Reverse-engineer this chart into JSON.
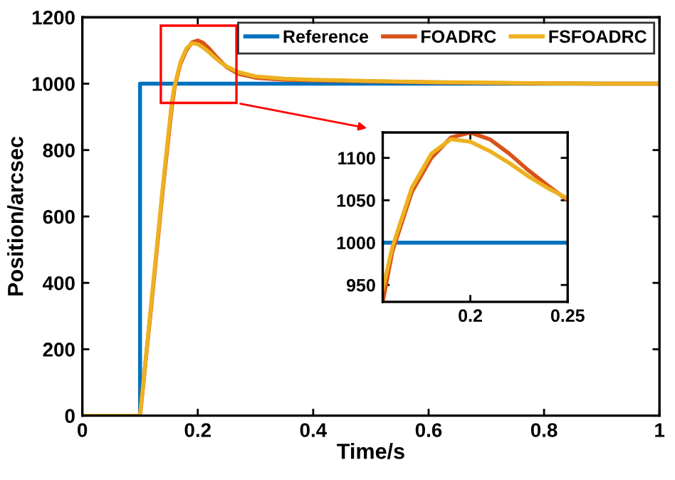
{
  "chart_data": [
    {
      "type": "line",
      "xlabel": "Time/s",
      "ylabel": "Position/arcsec",
      "xlim": [
        0,
        1
      ],
      "ylim": [
        0,
        1200
      ],
      "xticks": [
        0,
        0.2,
        0.4,
        0.6,
        0.8,
        1
      ],
      "yticks": [
        0,
        200,
        400,
        600,
        800,
        1000,
        1200
      ],
      "legend": "top right",
      "grid": false,
      "marker": "none",
      "line_style": "solid",
      "series": [
        {
          "name": "Reference",
          "color": "#0072bd",
          "x": [
            0,
            0.1,
            0.1,
            1
          ],
          "values": [
            0,
            0,
            1000,
            1000
          ]
        },
        {
          "name": "FOADRC",
          "color": "#d95319",
          "x": [
            0,
            0.1,
            0.12,
            0.14,
            0.155,
            0.16,
            0.17,
            0.18,
            0.19,
            0.2,
            0.21,
            0.22,
            0.23,
            0.24,
            0.25,
            0.27,
            0.3,
            0.35,
            0.4,
            0.5,
            0.6,
            0.7,
            0.8,
            0.9,
            1
          ],
          "values": [
            0,
            0,
            340,
            690,
            930,
            990,
            1060,
            1100,
            1124,
            1130,
            1122,
            1105,
            1085,
            1067,
            1050,
            1030,
            1018,
            1012,
            1010,
            1007,
            1004,
            1002,
            1001,
            1000,
            1000
          ]
        },
        {
          "name": "FSFOADRC",
          "color": "#edb120",
          "x": [
            0,
            0.1,
            0.12,
            0.14,
            0.155,
            0.16,
            0.17,
            0.18,
            0.19,
            0.2,
            0.21,
            0.22,
            0.23,
            0.24,
            0.25,
            0.27,
            0.3,
            0.35,
            0.4,
            0.5,
            0.6,
            0.7,
            0.8,
            0.9,
            1
          ],
          "values": [
            0,
            0,
            350,
            700,
            945,
            995,
            1065,
            1105,
            1122,
            1119,
            1108,
            1094,
            1078,
            1064,
            1052,
            1035,
            1022,
            1015,
            1012,
            1008,
            1005,
            1003,
            1001,
            1000,
            1000
          ]
        }
      ]
    },
    {
      "type": "line",
      "xlim": [
        0.155,
        0.25
      ],
      "ylim": [
        930,
        1130
      ],
      "xticks": [
        0.2,
        0.25
      ],
      "yticks": [
        950,
        1000,
        1050,
        1100
      ],
      "grid": false,
      "marker": "none",
      "line_style": "solid",
      "series": [
        {
          "color": "#0072bd",
          "x": [
            0.155,
            0.25
          ],
          "values": [
            1000,
            1000
          ]
        },
        {
          "color": "#d95319",
          "x": [
            0.155,
            0.16,
            0.17,
            0.18,
            0.19,
            0.2,
            0.21,
            0.22,
            0.23,
            0.24,
            0.25
          ],
          "values": [
            930,
            990,
            1060,
            1100,
            1124,
            1130,
            1122,
            1105,
            1085,
            1067,
            1050
          ]
        },
        {
          "color": "#edb120",
          "x": [
            0.155,
            0.16,
            0.17,
            0.18,
            0.19,
            0.2,
            0.21,
            0.22,
            0.23,
            0.24,
            0.25
          ],
          "values": [
            945,
            995,
            1065,
            1105,
            1122,
            1119,
            1108,
            1094,
            1078,
            1064,
            1052
          ]
        }
      ]
    }
  ]
}
